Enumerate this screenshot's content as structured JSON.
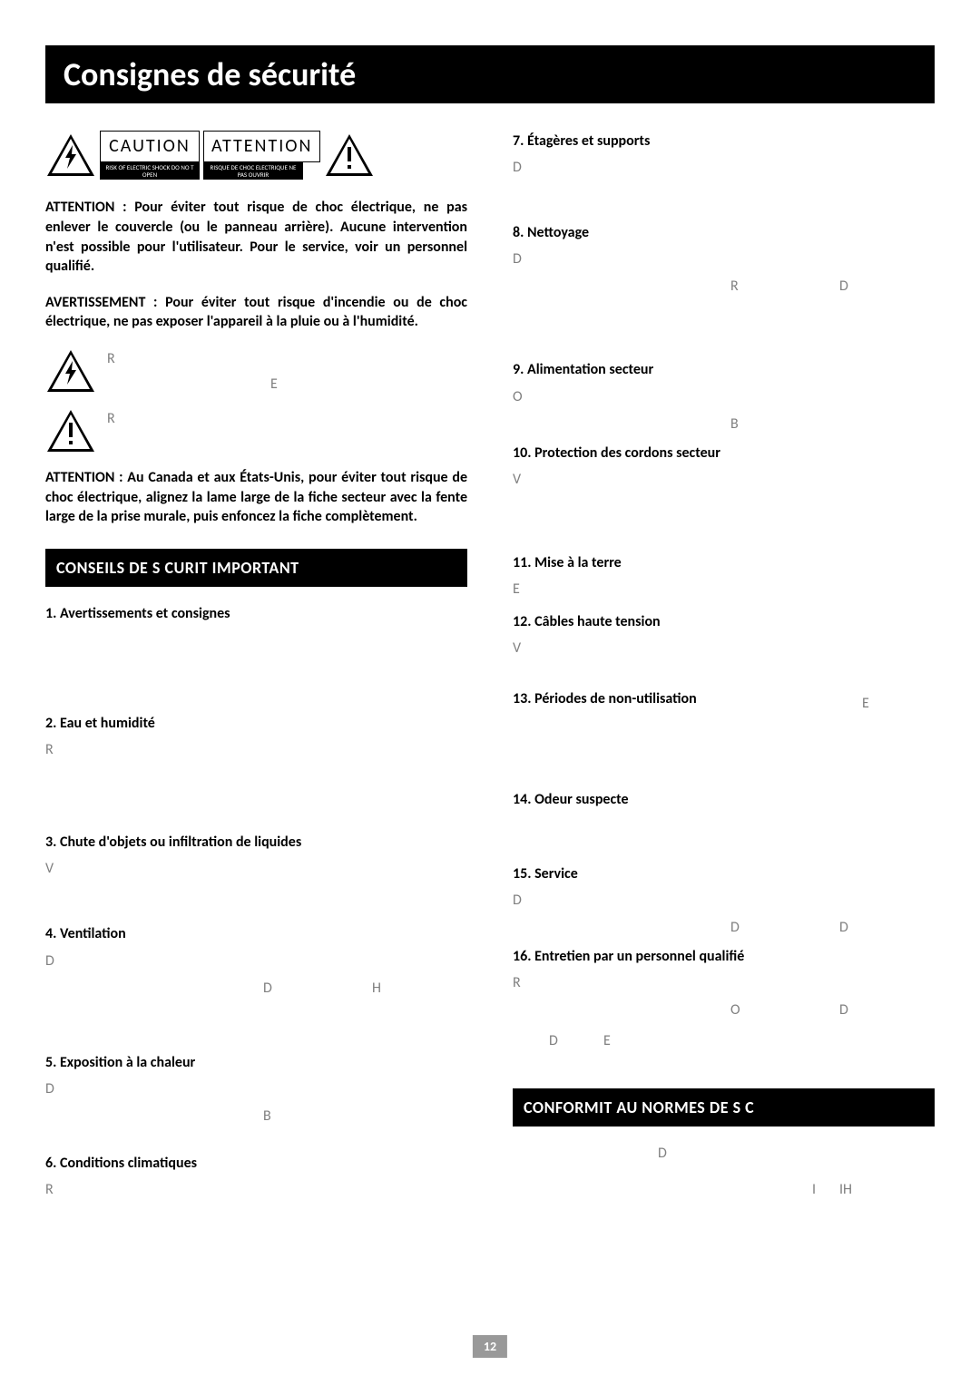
{
  "page_title": "Consignes de sécurité",
  "warning": {
    "caution_label": "CAUTION",
    "attention_label": "ATTENTION",
    "sub_en": "RISK OF ELECTRIC SHOCK DO NO T OPEN",
    "sub_fr": "RISQUE DE CHOC ELECTRIQUE NE PAS OUVRIR"
  },
  "para1": "ATTENTION : Pour éviter tout risque de choc électrique, ne pas enlever le couvercle (ou le panneau arrière). Aucune intervention n'est possible pour l'utilisateur. Pour le service, voir un personnel qualifié.",
  "para2": "AVERTISSEMENT : Pour éviter tout risque d'incendie ou de choc électrique, ne pas exposer l'appareil à la pluie ou à l'humidité.",
  "icon1_letters": {
    "r": "R",
    "e": "E"
  },
  "icon2_letters": {
    "r": "R"
  },
  "para3": "ATTENTION : Au Canada et aux États-Unis, pour éviter tout risque de choc électrique, alignez la lame large de la fiche secteur avec la fente large de la prise murale, puis enfoncez la fiche complètement.",
  "bar1": "CONSEILS DE S    CURIT      IMPORTANT",
  "bar2": "CONFORMIT    AU    NORMES DE S    C",
  "left_items": [
    {
      "n": "1.",
      "h": "Avertissements et consignes",
      "letters": []
    },
    {
      "n": "2.",
      "h": "Eau et humidité",
      "letters": [
        "R"
      ]
    },
    {
      "n": "3.",
      "h": "Chute d'objets ou infiltration de liquides",
      "letters": [
        "V"
      ]
    },
    {
      "n": "4.",
      "h": "Ventilation",
      "letters": [
        "D",
        "D",
        "H"
      ]
    },
    {
      "n": "5.",
      "h": "Exposition à la chaleur",
      "letters": [
        "D",
        "B"
      ]
    },
    {
      "n": "6.",
      "h": "Conditions climatiques",
      "letters": [
        "R"
      ]
    }
  ],
  "right_items": [
    {
      "n": "7.",
      "h": "Étagères et supports",
      "letters": [
        "D"
      ]
    },
    {
      "n": "8.",
      "h": "Nettoyage",
      "letters": [
        "D",
        "R",
        "D"
      ]
    },
    {
      "n": "9.",
      "h": "Alimentation secteur",
      "letters": [
        "O",
        "B"
      ]
    },
    {
      "n": "10.",
      "h": "Protection des cordons secteur",
      "letters": [
        "V"
      ]
    },
    {
      "n": "11.",
      "h": "Mise à la terre",
      "letters": [
        "E"
      ]
    },
    {
      "n": "12.",
      "h": "Câbles haute tension",
      "letters": [
        "V"
      ]
    },
    {
      "n": "13.",
      "h": "Périodes de non-utilisation",
      "letters": []
    },
    {
      "n": "14.",
      "h": "Odeur suspecte",
      "letters": []
    },
    {
      "n": "15.",
      "h": "Service",
      "letters": [
        "D",
        "D",
        "D"
      ]
    },
    {
      "n": "16.",
      "h": "Entretien par un personnel qualifié",
      "letters": [
        "R",
        "O",
        "D",
        "D",
        "E"
      ]
    }
  ],
  "conformity_letters": [
    "D",
    "I",
    "IH"
  ],
  "stray_e": "E",
  "page_number": "12"
}
